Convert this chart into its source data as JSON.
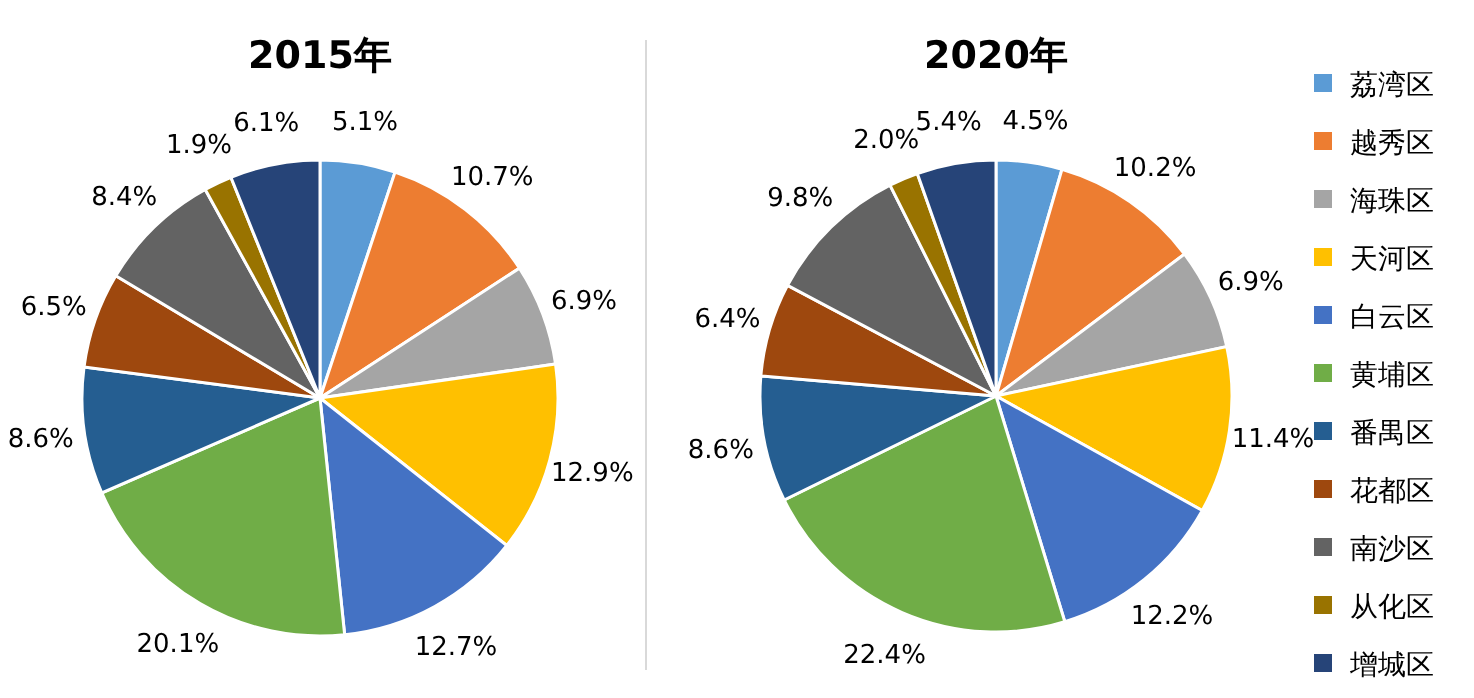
{
  "chart_data": [
    {
      "type": "pie",
      "title": "2015年",
      "categories": [
        null,
        null,
        null,
        null,
        null,
        null,
        null,
        null,
        null,
        null,
        null
      ],
      "values": [
        5.1,
        10.7,
        6.9,
        12.9,
        12.7,
        20.1,
        8.6,
        6.5,
        8.4,
        1.9,
        6.1
      ],
      "value_labels": [
        "5.1%",
        "10.7%",
        "6.9%",
        "12.9%",
        "12.7%",
        "20.1%",
        "8.6%",
        "6.5%",
        "8.4%",
        "1.9%",
        "6.1%"
      ],
      "colors": [
        "#5b9bd5",
        "#ed7d31",
        "#a5a5a5",
        "#ffc000",
        "#4472c4",
        "#70ad47",
        "#255e91",
        "#9e480e",
        "#636363",
        "#997300",
        "#264478"
      ]
    },
    {
      "type": "pie",
      "title": "2020年",
      "categories": [
        "荔湾区",
        "越秀区",
        "海珠区",
        "天河区",
        "白云区",
        "黄埔区",
        "番禺区",
        "花都区",
        "南沙区",
        "从化区",
        "增城区"
      ],
      "values": [
        4.5,
        10.2,
        6.9,
        11.4,
        12.2,
        22.4,
        8.6,
        6.4,
        9.8,
        2.0,
        5.4
      ],
      "value_labels": [
        "4.5%",
        "10.2%",
        "6.9%",
        "11.4%",
        "12.2%",
        "22.4%",
        "8.6%",
        "6.4%",
        "9.8%",
        "2.0%",
        "5.4%"
      ],
      "colors": [
        "#5b9bd5",
        "#ed7d31",
        "#a5a5a5",
        "#ffc000",
        "#4472c4",
        "#70ad47",
        "#255e91",
        "#9e480e",
        "#636363",
        "#997300",
        "#264478"
      ],
      "legend": "right"
    }
  ]
}
